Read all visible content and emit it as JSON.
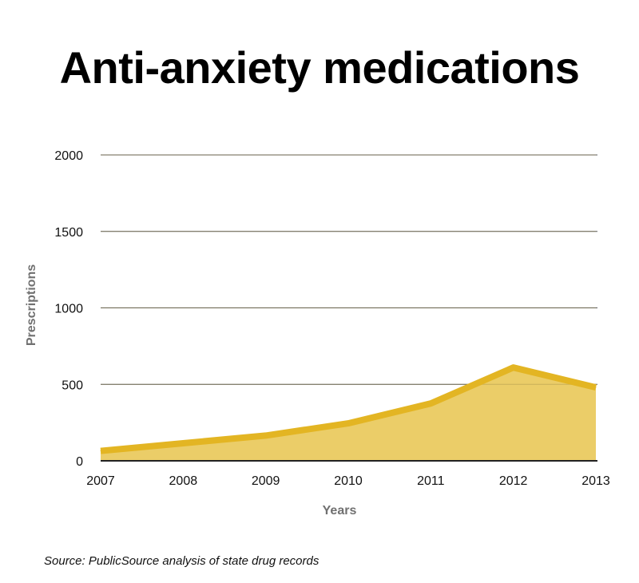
{
  "chart_data": {
    "type": "area",
    "title": "Anti-anxiety medications",
    "xlabel": "Years",
    "ylabel": "Prescriptions",
    "categories": [
      "2007",
      "2008",
      "2009",
      "2010",
      "2011",
      "2012",
      "2013"
    ],
    "series": [
      {
        "name": "Anti-anxiety medications",
        "values": [
          65,
          115,
          165,
          245,
          375,
          610,
          480
        ]
      }
    ],
    "yticks": [
      "0",
      "500",
      "1000",
      "1500",
      "2000"
    ],
    "ylim": [
      0,
      2000
    ],
    "grid": true,
    "legend": "none",
    "colors": {
      "line": "#e3b523",
      "fill": "#ebcd68",
      "grid": "#555555",
      "axis": "#222222",
      "axis_title": "#707070"
    }
  },
  "source": "Source: PublicSource analysis of state drug records"
}
